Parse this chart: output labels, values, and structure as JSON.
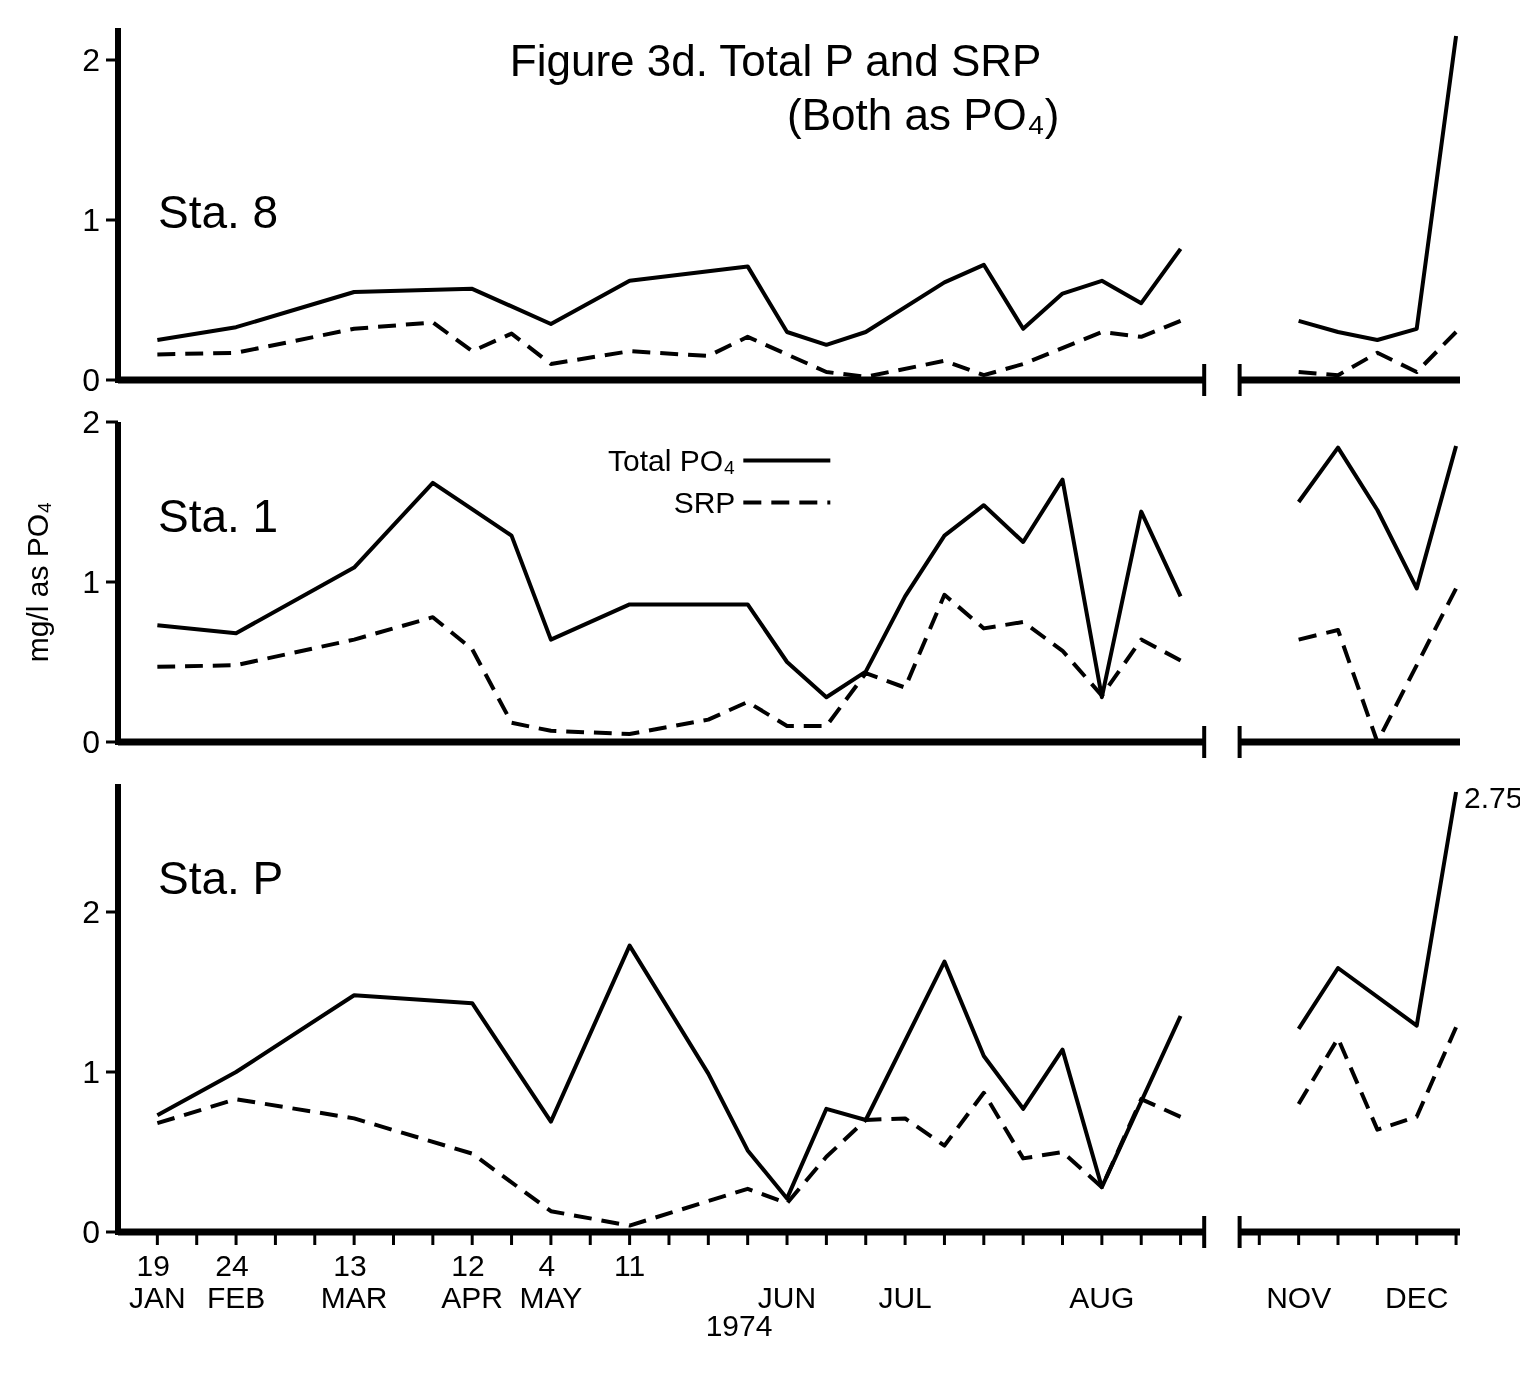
{
  "chart_data": [
    {
      "type": "line",
      "title": "Figure 3d. Total P and SRP",
      "subtitle": "(Both as PO₄)",
      "annotations": [
        "Sta. 8"
      ],
      "ylim": [
        0,
        2.2
      ],
      "yticks": [
        0,
        1,
        2
      ],
      "tick_labels": "y",
      "categories": [
        null,
        null,
        null,
        null,
        null,
        null,
        null,
        null,
        null,
        null,
        null,
        null,
        null,
        null,
        null,
        null,
        null,
        null,
        null,
        null,
        null,
        null,
        null,
        null,
        null,
        null,
        null,
        null,
        null,
        null,
        null,
        null,
        null,
        null
      ],
      "series": [
        {
          "color": "#000000",
          "line_style": "solid",
          "values": [
            0.25,
            null,
            0.33,
            null,
            null,
            0.55,
            null,
            null,
            0.57,
            null,
            0.35,
            null,
            0.62,
            null,
            null,
            0.71,
            0.3,
            0.22,
            0.3,
            null,
            0.61,
            0.72,
            0.32,
            0.54,
            0.62,
            0.48,
            0.82,
            null,
            null,
            null,
            null,
            null,
            null,
            null
          ]
        },
        {
          "color": "#000000",
          "line_style": "dashed",
          "values": [
            0.16,
            null,
            0.17,
            null,
            null,
            0.32,
            null,
            0.36,
            0.18,
            0.29,
            0.1,
            null,
            0.18,
            null,
            0.15,
            0.27,
            null,
            0.05,
            0.02,
            null,
            0.12,
            0.03,
            0.1,
            null,
            0.3,
            0.27,
            0.37,
            null,
            null,
            null,
            null,
            null,
            null,
            null
          ]
        },
        {
          "color": "#000000",
          "line_style": "solid",
          "values": [
            null,
            null,
            null,
            null,
            null,
            null,
            null,
            null,
            null,
            null,
            null,
            null,
            null,
            null,
            null,
            null,
            null,
            null,
            null,
            null,
            null,
            null,
            null,
            null,
            null,
            null,
            null,
            null,
            null,
            0.37,
            0.3,
            0.25,
            0.32,
            2.15
          ]
        },
        {
          "color": "#000000",
          "line_style": "dashed",
          "values": [
            null,
            null,
            null,
            null,
            null,
            null,
            null,
            null,
            null,
            null,
            null,
            null,
            null,
            null,
            null,
            null,
            null,
            null,
            null,
            null,
            null,
            null,
            null,
            null,
            null,
            null,
            null,
            null,
            null,
            0.05,
            0.03,
            0.17,
            0.05,
            0.3
          ]
        }
      ]
    },
    {
      "type": "line",
      "annotations": [
        "Sta. 1"
      ],
      "ylabel": "mg/l as PO₄",
      "legend": "top",
      "ylim": [
        0,
        2
      ],
      "yticks": [
        0,
        1,
        2
      ],
      "tick_labels": "y",
      "categories": [
        null,
        null,
        null,
        null,
        null,
        null,
        null,
        null,
        null,
        null,
        null,
        null,
        null,
        null,
        null,
        null,
        null,
        null,
        null,
        null,
        null,
        null,
        null,
        null,
        null,
        null,
        null,
        null,
        null,
        null,
        null,
        null,
        null,
        null
      ],
      "series": [
        {
          "name": "Total PO₄",
          "color": "#000000",
          "line_style": "solid",
          "values": [
            0.73,
            null,
            0.68,
            null,
            null,
            1.09,
            null,
            1.62,
            null,
            1.29,
            0.64,
            null,
            0.86,
            null,
            null,
            0.86,
            0.5,
            0.28,
            0.44,
            0.91,
            1.29,
            1.48,
            1.25,
            1.64,
            0.28,
            1.44,
            0.91,
            null,
            null,
            null,
            null,
            null,
            null,
            null
          ]
        },
        {
          "name": "SRP",
          "color": "#000000",
          "line_style": "dashed",
          "values": [
            0.47,
            null,
            0.48,
            null,
            null,
            0.64,
            null,
            0.78,
            0.58,
            0.12,
            0.07,
            null,
            0.05,
            null,
            0.14,
            0.25,
            0.1,
            0.1,
            0.43,
            0.34,
            0.92,
            0.71,
            0.75,
            0.57,
            0.29,
            0.64,
            0.51,
            null,
            null,
            null,
            null,
            null,
            null,
            null
          ]
        },
        {
          "color": "#000000",
          "line_style": "solid",
          "values": [
            null,
            null,
            null,
            null,
            null,
            null,
            null,
            null,
            null,
            null,
            null,
            null,
            null,
            null,
            null,
            null,
            null,
            null,
            null,
            null,
            null,
            null,
            null,
            null,
            null,
            null,
            null,
            null,
            null,
            1.5,
            1.84,
            1.45,
            0.96,
            1.85
          ]
        },
        {
          "color": "#000000",
          "line_style": "dashed",
          "values": [
            null,
            null,
            null,
            null,
            null,
            null,
            null,
            null,
            null,
            null,
            null,
            null,
            null,
            null,
            null,
            null,
            null,
            null,
            null,
            null,
            null,
            null,
            null,
            null,
            null,
            null,
            null,
            null,
            null,
            0.64,
            0.7,
            0,
            null,
            0.96
          ]
        }
      ]
    },
    {
      "type": "line",
      "annotations": [
        "Sta. P",
        "2.75"
      ],
      "xlabel": "1974",
      "ylim": [
        0,
        2.8
      ],
      "yticks": [
        0,
        1,
        2
      ],
      "categories": [
        "19 JAN",
        null,
        "24 FEB",
        null,
        null,
        "13 MAR",
        null,
        null,
        "12 APR",
        null,
        "4 MAY",
        null,
        "11",
        null,
        null,
        null,
        "JUN",
        null,
        null,
        "JUL",
        null,
        null,
        null,
        null,
        "AUG",
        null,
        null,
        null,
        null,
        "NOV",
        null,
        null,
        "DEC",
        null
      ],
      "series": [
        {
          "color": "#000000",
          "line_style": "solid",
          "values": [
            0.73,
            null,
            1.0,
            null,
            null,
            1.48,
            null,
            null,
            1.43,
            null,
            0.69,
            null,
            1.79,
            null,
            0.99,
            0.51,
            0.21,
            0.77,
            0.7,
            null,
            1.69,
            1.1,
            0.77,
            1.14,
            0.28,
            null,
            1.35,
            null,
            null,
            null,
            null,
            null,
            null,
            null
          ]
        },
        {
          "color": "#000000",
          "line_style": "dashed",
          "values": [
            0.68,
            null,
            0.83,
            null,
            null,
            0.71,
            null,
            null,
            0.49,
            null,
            0.13,
            null,
            0.04,
            null,
            null,
            0.27,
            0.18,
            0.47,
            0.7,
            0.71,
            0.54,
            0.87,
            0.46,
            0.5,
            0.28,
            0.83,
            0.72,
            null,
            null,
            null,
            null,
            null,
            null,
            null
          ]
        },
        {
          "color": "#000000",
          "line_style": "solid",
          "values": [
            null,
            null,
            null,
            null,
            null,
            null,
            null,
            null,
            null,
            null,
            null,
            null,
            null,
            null,
            null,
            null,
            null,
            null,
            null,
            null,
            null,
            null,
            null,
            null,
            null,
            null,
            null,
            null,
            null,
            1.27,
            1.65,
            null,
            1.29,
            2.75
          ]
        },
        {
          "color": "#000000",
          "line_style": "dashed",
          "values": [
            null,
            null,
            null,
            null,
            null,
            null,
            null,
            null,
            null,
            null,
            null,
            null,
            null,
            null,
            null,
            null,
            null,
            null,
            null,
            null,
            null,
            null,
            null,
            null,
            null,
            null,
            null,
            null,
            null,
            0.8,
            1.21,
            0.64,
            0.72,
            1.28
          ]
        }
      ]
    }
  ]
}
